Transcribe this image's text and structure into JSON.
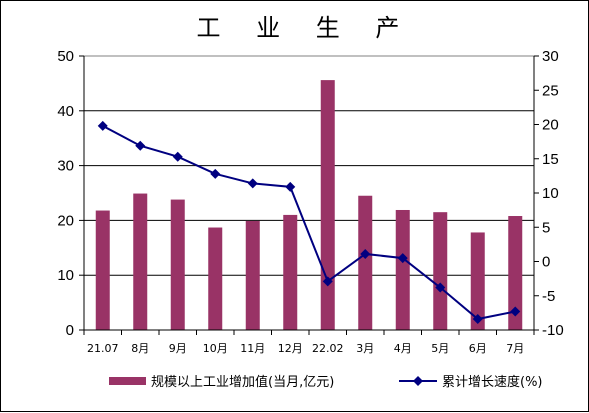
{
  "chart_data": {
    "type": "bar+line",
    "title": "工 业 生 产",
    "categories": [
      "21.07",
      "8月",
      "9月",
      "10月",
      "11月",
      "12月",
      "22.02",
      "3月",
      "4月",
      "5月",
      "6月",
      "7月"
    ],
    "series": [
      {
        "name": "规模以上工业增加值(当月,亿元)",
        "type": "bar",
        "axis": "left",
        "color": "#993366",
        "values": [
          21.8,
          24.9,
          23.8,
          18.7,
          19.9,
          21.0,
          45.6,
          24.5,
          21.9,
          21.5,
          17.8,
          20.8
        ]
      },
      {
        "name": "累计增长速度(%)",
        "type": "line",
        "axis": "right",
        "color": "#000080",
        "values": [
          19.8,
          16.9,
          15.3,
          12.8,
          11.4,
          10.9,
          -2.9,
          1.1,
          0.5,
          -3.8,
          -8.4,
          -7.3
        ]
      }
    ],
    "y_left": {
      "min": 0,
      "max": 50,
      "ticks": [
        0,
        10,
        20,
        30,
        40,
        50
      ]
    },
    "y_right": {
      "min": -10,
      "max": 30,
      "ticks": [
        -10,
        -5,
        0,
        5,
        10,
        15,
        20,
        25,
        30
      ]
    },
    "grid": true,
    "legend_position": "bottom"
  }
}
